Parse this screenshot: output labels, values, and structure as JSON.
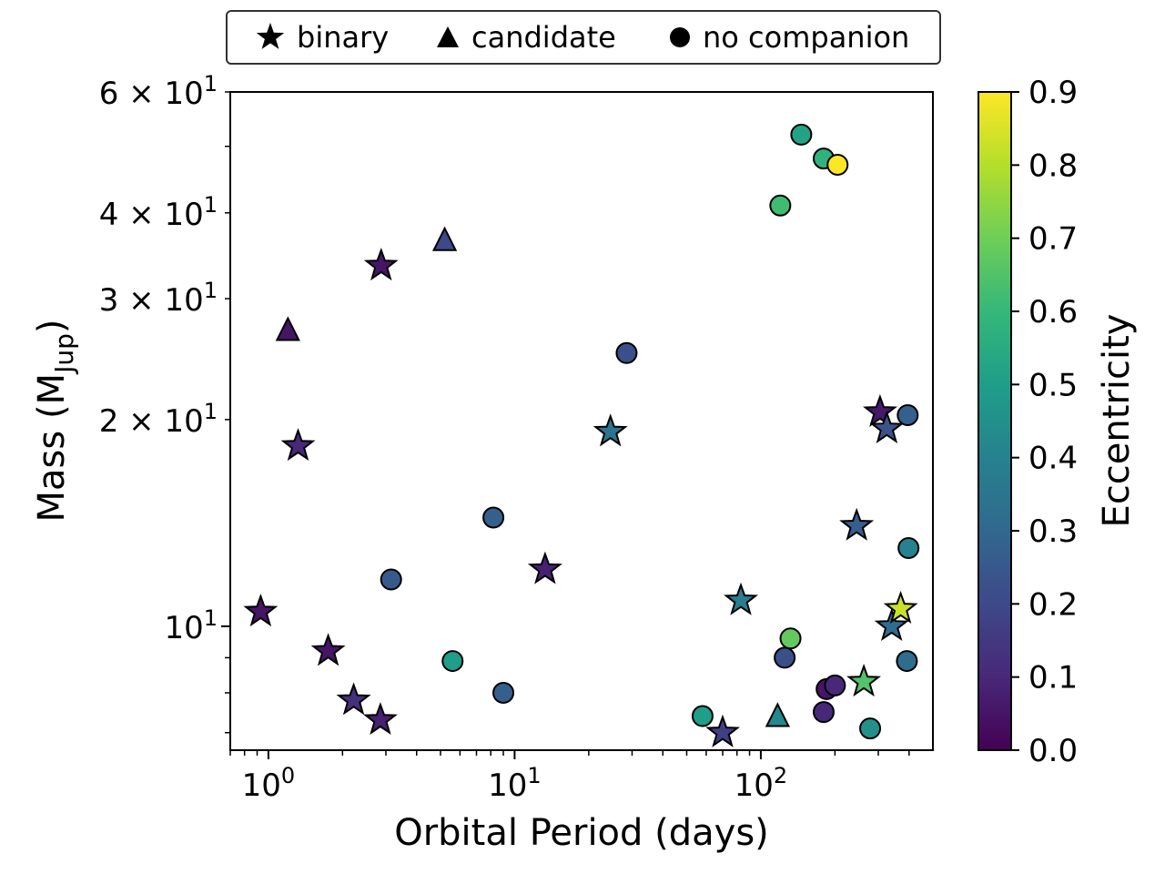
{
  "chart_data": {
    "type": "scatter",
    "xlabel": "Orbital Period (days)",
    "ylabel_main": "Mass (M",
    "ylabel_sub": "Jup",
    "ylabel_close": ")",
    "xscale": "log",
    "yscale": "log",
    "xlim": [
      0.7,
      500
    ],
    "ylim": [
      6.6,
      60
    ],
    "x_ticks": [
      {
        "value": 1,
        "base": "10",
        "exp": "0"
      },
      {
        "value": 10,
        "base": "10",
        "exp": "1"
      },
      {
        "value": 100,
        "base": "10",
        "exp": "2"
      }
    ],
    "y_ticks": [
      {
        "value": 10,
        "mant": "",
        "base": "10",
        "exp": "1"
      },
      {
        "value": 20,
        "mant": "2 × ",
        "base": "10",
        "exp": "1"
      },
      {
        "value": 30,
        "mant": "3 × ",
        "base": "10",
        "exp": "1"
      },
      {
        "value": 40,
        "mant": "4 × ",
        "base": "10",
        "exp": "1"
      },
      {
        "value": 60,
        "mant": "6 × ",
        "base": "10",
        "exp": "1"
      }
    ],
    "colorbar": {
      "label": "Eccentricity",
      "min": 0.0,
      "max": 0.9,
      "ticks": [
        "0.0",
        "0.1",
        "0.2",
        "0.3",
        "0.4",
        "0.5",
        "0.6",
        "0.7",
        "0.8",
        "0.9"
      ],
      "colormap": [
        "#440154",
        "#482878",
        "#3e4989",
        "#31688e",
        "#26828e",
        "#1f9e89",
        "#35b779",
        "#6ece58",
        "#b5de2b",
        "#fde725"
      ]
    },
    "legend": {
      "position": "top-center",
      "entries": [
        {
          "marker": "star",
          "label": "binary"
        },
        {
          "marker": "triangle",
          "label": "candidate"
        },
        {
          "marker": "circle",
          "label": "no companion"
        }
      ]
    },
    "series": [
      {
        "name": "binary",
        "marker": "star",
        "points": [
          {
            "x": 0.93,
            "y": 10.5,
            "e": 0.05
          },
          {
            "x": 1.32,
            "y": 18.3,
            "e": 0.1
          },
          {
            "x": 1.75,
            "y": 9.2,
            "e": 0.05
          },
          {
            "x": 2.22,
            "y": 7.8,
            "e": 0.12
          },
          {
            "x": 2.85,
            "y": 7.3,
            "e": 0.08
          },
          {
            "x": 2.87,
            "y": 33.5,
            "e": 0.05
          },
          {
            "x": 13.3,
            "y": 12.1,
            "e": 0.08
          },
          {
            "x": 24.5,
            "y": 19.2,
            "e": 0.35
          },
          {
            "x": 70,
            "y": 7.0,
            "e": 0.17
          },
          {
            "x": 83,
            "y": 10.9,
            "e": 0.38
          },
          {
            "x": 245,
            "y": 14.0,
            "e": 0.27
          },
          {
            "x": 262,
            "y": 8.3,
            "e": 0.65
          },
          {
            "x": 305,
            "y": 20.5,
            "e": 0.06
          },
          {
            "x": 325,
            "y": 19.4,
            "e": 0.24
          },
          {
            "x": 340,
            "y": 10.0,
            "e": 0.32
          },
          {
            "x": 370,
            "y": 10.6,
            "e": 0.83
          }
        ]
      },
      {
        "name": "candidate",
        "marker": "triangle",
        "points": [
          {
            "x": 1.2,
            "y": 27.0,
            "e": 0.05
          },
          {
            "x": 5.2,
            "y": 36.5,
            "e": 0.2
          },
          {
            "x": 117,
            "y": 7.4,
            "e": 0.42
          }
        ]
      },
      {
        "name": "no companion",
        "marker": "circle",
        "points": [
          {
            "x": 3.15,
            "y": 11.7,
            "e": 0.25
          },
          {
            "x": 5.6,
            "y": 8.9,
            "e": 0.5
          },
          {
            "x": 8.2,
            "y": 14.4,
            "e": 0.27
          },
          {
            "x": 9.0,
            "y": 8.0,
            "e": 0.27
          },
          {
            "x": 28.5,
            "y": 25.0,
            "e": 0.22
          },
          {
            "x": 58,
            "y": 7.4,
            "e": 0.5
          },
          {
            "x": 120,
            "y": 41.0,
            "e": 0.62
          },
          {
            "x": 125,
            "y": 9.0,
            "e": 0.22
          },
          {
            "x": 132,
            "y": 9.6,
            "e": 0.68
          },
          {
            "x": 146,
            "y": 52.0,
            "e": 0.52
          },
          {
            "x": 180,
            "y": 48.0,
            "e": 0.58
          },
          {
            "x": 180,
            "y": 7.5,
            "e": 0.1
          },
          {
            "x": 185,
            "y": 8.1,
            "e": 0.05
          },
          {
            "x": 200,
            "y": 8.2,
            "e": 0.1
          },
          {
            "x": 205,
            "y": 47.0,
            "e": 0.9
          },
          {
            "x": 278,
            "y": 7.1,
            "e": 0.45
          },
          {
            "x": 395,
            "y": 20.3,
            "e": 0.27
          },
          {
            "x": 398,
            "y": 13.0,
            "e": 0.4
          },
          {
            "x": 392,
            "y": 8.9,
            "e": 0.32
          }
        ]
      }
    ]
  }
}
